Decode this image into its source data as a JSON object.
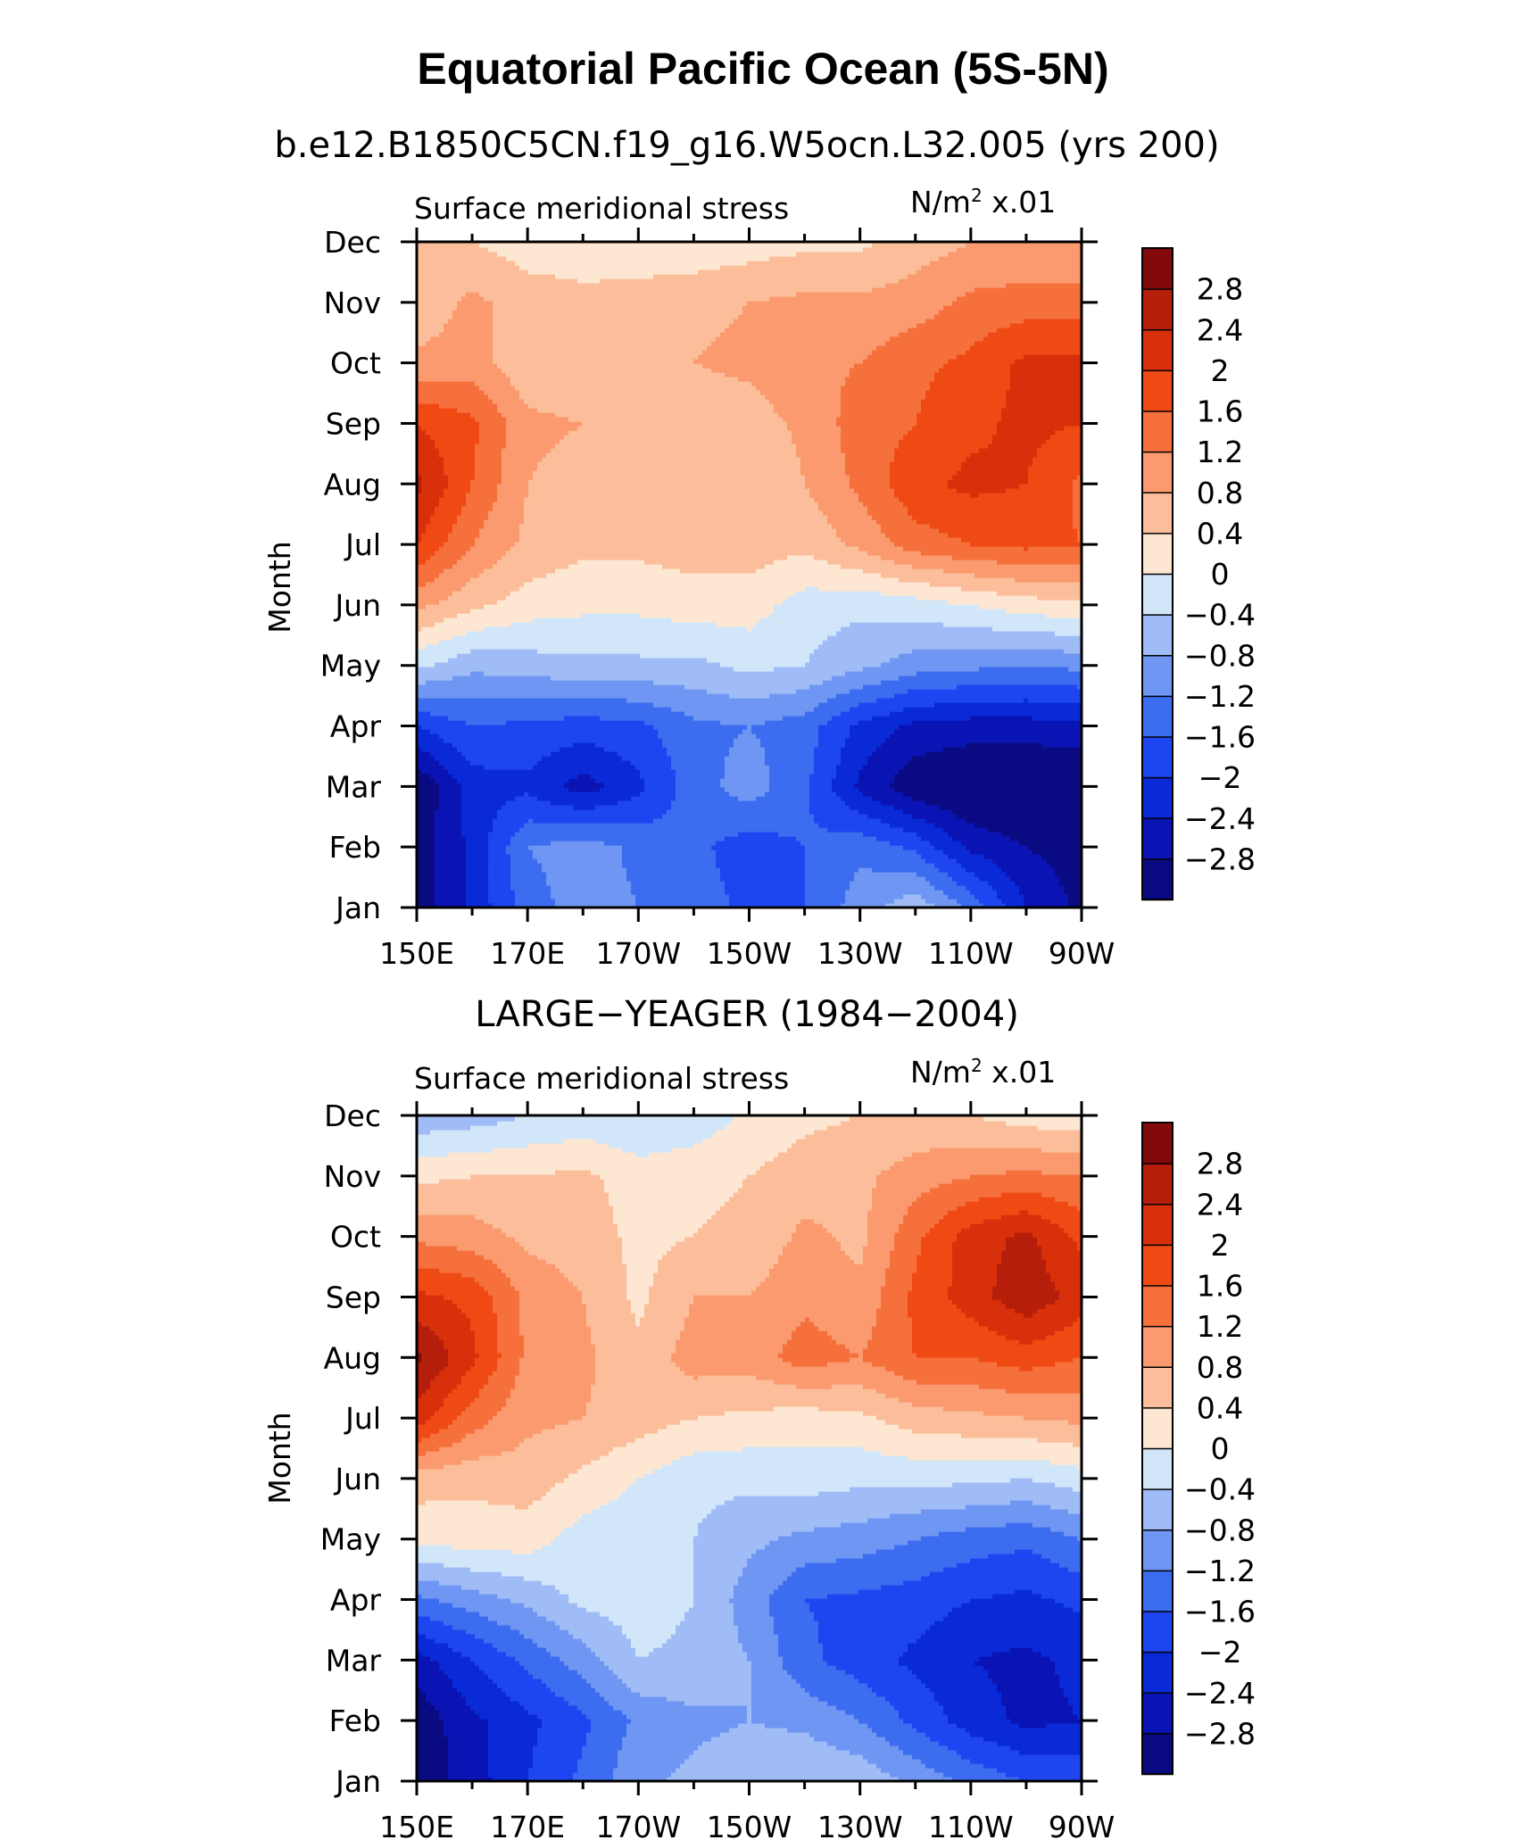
{
  "figure": {
    "title": "Equatorial Pacific Ocean (5S-5N)"
  },
  "chart_data": [
    {
      "type": "heatmap",
      "title": "b.e12.B1850C5CN.f19_g16.W5ocn.L32.005 (yrs 200)",
      "left_label": "Surface meridional stress",
      "units_label": "N/m² x.01",
      "ylabel": "Month",
      "x_ticks": [
        "150E",
        "170E",
        "170W",
        "150W",
        "130W",
        "110W",
        "90W"
      ],
      "y_ticks": [
        "Jan",
        "Feb",
        "Mar",
        "Apr",
        "May",
        "Jun",
        "Jul",
        "Aug",
        "Sep",
        "Oct",
        "Nov",
        "Dec"
      ],
      "x_range": [
        "150E",
        "90W"
      ],
      "colorbar_labels": [
        "2.8",
        "2.4",
        "2",
        "1.6",
        "1.2",
        "0.8",
        "0.4",
        "0",
        "−0.4",
        "−0.8",
        "−1.2",
        "−1.6",
        "−2",
        "−2.4",
        "−2.8"
      ],
      "x": [
        "150E",
        "160E",
        "170E",
        "180",
        "170W",
        "160W",
        "150W",
        "140W",
        "130W",
        "120W",
        "110W",
        "100W",
        "90W"
      ],
      "y": [
        "Jan",
        "Feb",
        "Mar",
        "Apr",
        "May",
        "Jun",
        "Jul",
        "Aug",
        "Sep",
        "Oct",
        "Nov",
        "Dec"
      ],
      "values_x100_N_m2": [
        [
          -3.0,
          -2.3,
          -1.4,
          -1.0,
          -1.2,
          -1.4,
          -1.7,
          -1.6,
          -1.0,
          -0.5,
          -1.3,
          -2.4,
          -2.9
        ],
        [
          -3.0,
          -2.3,
          -1.2,
          -1.0,
          -1.3,
          -1.5,
          -1.8,
          -1.6,
          -1.3,
          -1.7,
          -2.5,
          -2.8,
          -3.0
        ],
        [
          -3.2,
          -2.2,
          -2.1,
          -2.6,
          -2.1,
          -1.4,
          -1.0,
          -1.5,
          -2.5,
          -3.1,
          -3.3,
          -3.3,
          -3.3
        ],
        [
          -2.0,
          -1.6,
          -1.7,
          -1.8,
          -1.7,
          -1.3,
          -1.2,
          -1.4,
          -2.1,
          -2.5,
          -2.6,
          -2.6,
          -2.5
        ],
        [
          -0.3,
          -0.7,
          -0.6,
          -0.5,
          -0.5,
          -0.5,
          -0.3,
          -0.4,
          -0.7,
          -1.0,
          -1.1,
          -1.2,
          -1.1
        ],
        [
          0.9,
          0.5,
          0.2,
          0.1,
          0.1,
          0.2,
          0.2,
          -0.2,
          -0.3,
          -0.2,
          0.0,
          0.2,
          0.3
        ],
        [
          2.0,
          1.2,
          0.7,
          0.5,
          0.5,
          0.6,
          0.6,
          0.5,
          0.9,
          1.4,
          1.6,
          1.7,
          1.6
        ],
        [
          2.5,
          1.6,
          0.8,
          0.6,
          0.5,
          0.5,
          0.4,
          0.8,
          1.3,
          1.9,
          2.1,
          2.0,
          1.5
        ],
        [
          2.0,
          1.7,
          0.9,
          0.8,
          0.7,
          0.5,
          0.6,
          0.9,
          1.4,
          1.6,
          1.9,
          2.1,
          2.0
        ],
        [
          0.9,
          1.0,
          0.5,
          0.5,
          0.6,
          0.8,
          0.9,
          1.1,
          1.2,
          1.5,
          1.7,
          2.1,
          2.1
        ],
        [
          0.5,
          0.9,
          0.6,
          0.5,
          0.6,
          0.7,
          0.8,
          0.9,
          0.9,
          1.0,
          1.3,
          1.4,
          1.4
        ],
        [
          0.7,
          0.4,
          0.2,
          0.2,
          0.1,
          0.1,
          0.2,
          0.3,
          0.3,
          0.6,
          0.8,
          0.8,
          0.8
        ]
      ]
    },
    {
      "type": "heatmap",
      "title": "LARGE−YEAGER (1984−2004)",
      "left_label": "Surface meridional stress",
      "units_label": "N/m² x.01",
      "ylabel": "Month",
      "x_ticks": [
        "150E",
        "170E",
        "170W",
        "150W",
        "130W",
        "110W",
        "90W"
      ],
      "y_ticks": [
        "Jan",
        "Feb",
        "Mar",
        "Apr",
        "May",
        "Jun",
        "Jul",
        "Aug",
        "Sep",
        "Oct",
        "Nov",
        "Dec"
      ],
      "x_range": [
        "150E",
        "90W"
      ],
      "colorbar_labels": [
        "2.8",
        "2.4",
        "2",
        "1.6",
        "1.2",
        "0.8",
        "0.4",
        "0",
        "−0.4",
        "−0.8",
        "−1.2",
        "−1.6",
        "−2",
        "−2.4",
        "−2.8"
      ],
      "x": [
        "150E",
        "160E",
        "170E",
        "180",
        "170W",
        "160W",
        "150W",
        "140W",
        "130W",
        "120W",
        "110W",
        "100W",
        "90W"
      ],
      "y": [
        "Jan",
        "Feb",
        "Mar",
        "Apr",
        "May",
        "Jun",
        "Jul",
        "Aug",
        "Sep",
        "Oct",
        "Nov",
        "Dec"
      ],
      "values_x100_N_m2": [
        [
          -3.1,
          -2.6,
          -2.0,
          -1.5,
          -0.9,
          -0.7,
          -0.5,
          -0.4,
          -0.5,
          -0.9,
          -1.3,
          -1.6,
          -1.7
        ],
        [
          -3.1,
          -2.5,
          -2.1,
          -1.7,
          -1.1,
          -0.9,
          -0.8,
          -0.9,
          -1.2,
          -1.7,
          -2.2,
          -2.5,
          -2.4
        ],
        [
          -2.6,
          -2.0,
          -1.5,
          -1.0,
          -0.4,
          -0.5,
          -0.8,
          -1.5,
          -1.8,
          -2.1,
          -2.4,
          -2.5,
          -2.3
        ],
        [
          -1.3,
          -1.0,
          -0.7,
          -0.3,
          -0.2,
          -0.4,
          -1.0,
          -1.6,
          -1.7,
          -1.8,
          -2.0,
          -2.1,
          -1.9
        ],
        [
          0.1,
          0.2,
          0.2,
          -0.2,
          -0.3,
          -0.4,
          -0.7,
          -0.9,
          -1.0,
          -1.2,
          -1.4,
          -1.5,
          -1.2
        ],
        [
          0.6,
          0.5,
          0.6,
          0.3,
          0.0,
          -0.3,
          -0.3,
          -0.2,
          -0.3,
          -0.3,
          -0.3,
          -0.4,
          -0.2
        ],
        [
          2.2,
          1.4,
          0.9,
          0.8,
          0.6,
          0.4,
          0.3,
          0.2,
          0.3,
          0.6,
          0.7,
          0.8,
          0.9
        ],
        [
          2.9,
          2.1,
          1.1,
          0.9,
          0.5,
          1.0,
          1.0,
          1.4,
          1.2,
          1.6,
          1.6,
          1.8,
          1.6
        ],
        [
          2.1,
          1.9,
          1.1,
          0.8,
          0.3,
          0.8,
          0.8,
          1.1,
          0.9,
          1.7,
          2.2,
          2.7,
          2.2
        ],
        [
          1.1,
          1.0,
          0.7,
          0.6,
          0.3,
          0.4,
          0.5,
          0.9,
          0.7,
          1.5,
          2.2,
          2.5,
          1.9
        ],
        [
          0.3,
          0.4,
          0.4,
          0.5,
          0.2,
          0.3,
          0.4,
          0.6,
          0.7,
          1.0,
          1.2,
          1.3,
          1.2
        ],
        [
          -0.7,
          -0.6,
          -0.4,
          -0.3,
          -0.4,
          -0.3,
          0.1,
          0.3,
          0.4,
          0.5,
          0.4,
          0.2,
          0.1
        ]
      ]
    }
  ],
  "colormap": [
    "#0a0a82",
    "#0a14b4",
    "#0a2ad8",
    "#1e46f0",
    "#3c6cf0",
    "#6e96f2",
    "#a0bcf6",
    "#d2e6fa",
    "#fde6d2",
    "#fcbe9a",
    "#fa9a6e",
    "#f6703c",
    "#f04a14",
    "#d8300a",
    "#b41e0a",
    "#820a0a"
  ],
  "levels": [
    -2.8,
    -2.4,
    -2.0,
    -1.6,
    -1.2,
    -0.8,
    -0.4,
    0,
    0.4,
    0.8,
    1.2,
    1.6,
    2.0,
    2.4,
    2.8
  ]
}
